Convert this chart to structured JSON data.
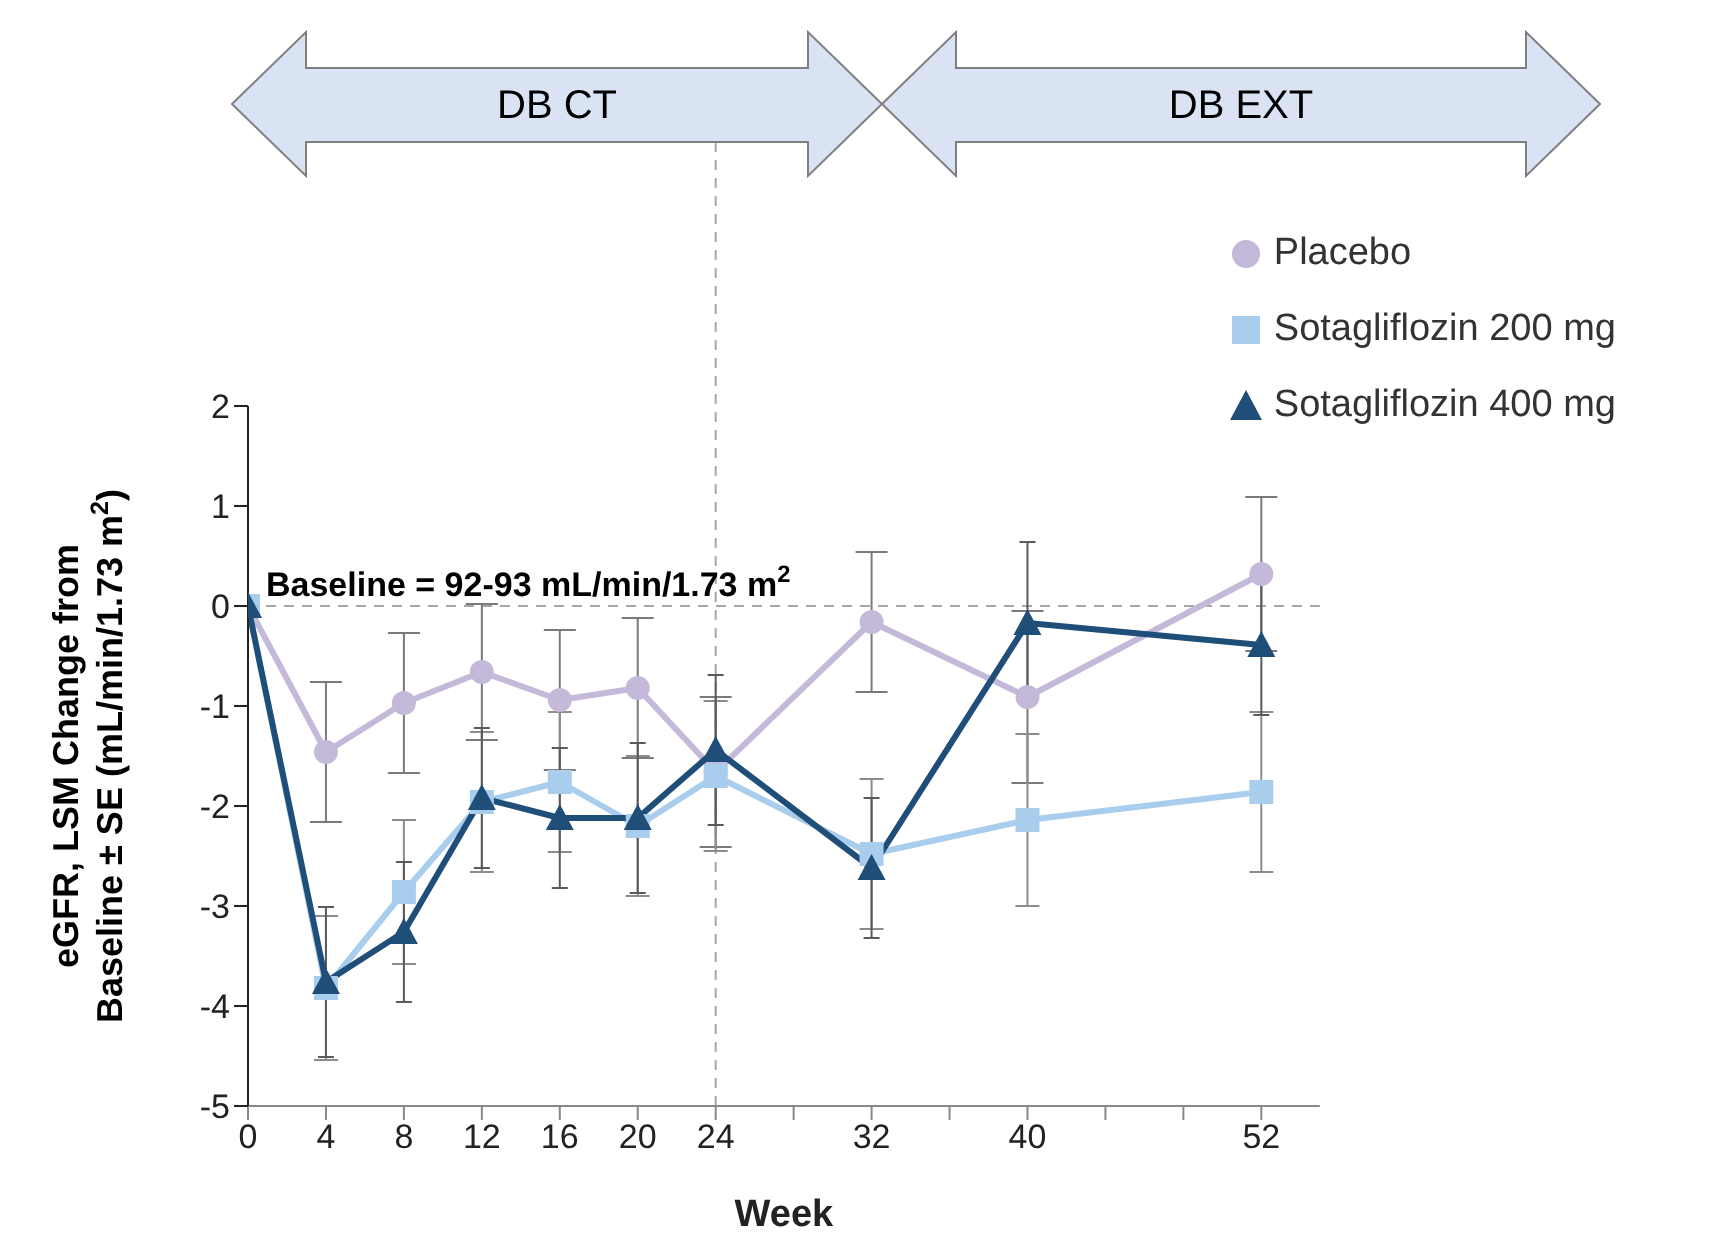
{
  "chart_data": {
    "type": "line",
    "ylabel": "eGFR, LSM Change from\nBaseline ± SE (mL/min/1.73 m$^{2}$)",
    "xlabel": "Week",
    "x": [
      0,
      4,
      8,
      12,
      16,
      20,
      24,
      32,
      40,
      52
    ],
    "xlim": [
      0,
      55
    ],
    "xticks": [
      0,
      4,
      8,
      12,
      16,
      20,
      24,
      {
        "value": 28,
        "label": null
      },
      32,
      {
        "value": 36,
        "label": null
      },
      40,
      {
        "value": 44,
        "label": null
      },
      {
        "value": 48,
        "label": null
      },
      52
    ],
    "ylim": [
      -5,
      2
    ],
    "yticks": [
      -5,
      -4,
      -3,
      -2,
      -1,
      0,
      1,
      2
    ],
    "series": [
      {
        "name": "Placebo",
        "color": "#c5b9d9",
        "marker": "circle",
        "values": [
          0,
          -1.46,
          -0.97,
          -0.66,
          -0.94,
          -0.82,
          -1.66,
          -0.16,
          -0.91,
          0.32
        ],
        "errors": [
          null,
          0.7,
          0.7,
          0.68,
          0.7,
          0.7,
          0.75,
          0.7,
          0.86,
          0.77
        ]
      },
      {
        "name": "Sotagliflozin 200 mg",
        "color": "#a9cdec",
        "marker": "square",
        "values": [
          0,
          -3.82,
          -2.86,
          -1.96,
          -1.76,
          -2.2,
          -1.7,
          -2.48,
          -2.14,
          -1.86
        ],
        "errors": [
          null,
          0.72,
          0.72,
          0.7,
          0.7,
          0.7,
          0.75,
          0.75,
          0.86,
          0.8
        ]
      },
      {
        "name": "Sotagliflozin 400 mg",
        "color": "#1f4e79",
        "marker": "triangle",
        "values": [
          0,
          -3.76,
          -3.26,
          -1.92,
          -2.12,
          -2.12,
          -1.44,
          -2.62,
          -0.17,
          -0.39
        ],
        "errors": [
          null,
          0.75,
          0.7,
          0.7,
          0.7,
          0.75,
          0.75,
          0.7,
          0.81,
          0.7
        ]
      }
    ],
    "ref_lines": [
      {
        "axis": "y",
        "value": 0,
        "color": "#a6a6a6",
        "line_style": "dashed"
      },
      {
        "axis": "x",
        "value": 24,
        "color": "#a6a6a6",
        "line_style": "dashed"
      }
    ],
    "annotations": [
      "DB CT",
      "DB EXT",
      "Baseline = 92-93 mL/min/1.73 m$^{2}$"
    ],
    "legend": "top right"
  }
}
